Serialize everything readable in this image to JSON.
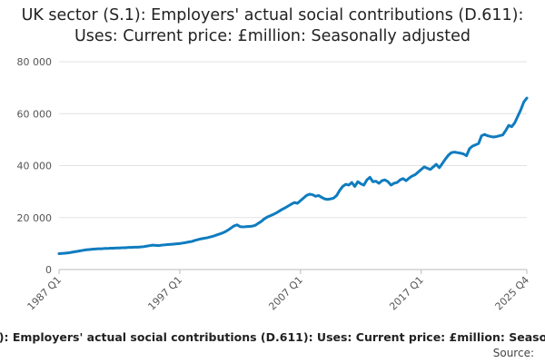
{
  "chart_data": {
    "type": "line",
    "title": "UK sector (S.1): Employers' actual social contributions (D.611): Uses: Current price: £million: Seasonally adjusted",
    "source_label": "Source:",
    "categories": [
      "1987 Q1",
      null,
      null,
      null,
      null,
      null,
      null,
      null,
      null,
      null,
      null,
      null,
      null,
      null,
      null,
      null,
      null,
      null,
      null,
      null,
      null,
      null,
      null,
      null,
      null,
      null,
      null,
      null,
      null,
      null,
      null,
      null,
      null,
      null,
      null,
      null,
      null,
      null,
      null,
      null,
      "1997 Q1",
      null,
      null,
      null,
      null,
      null,
      null,
      null,
      null,
      null,
      null,
      null,
      null,
      null,
      null,
      null,
      null,
      null,
      null,
      null,
      null,
      null,
      null,
      null,
      null,
      null,
      null,
      null,
      null,
      null,
      null,
      null,
      null,
      null,
      null,
      null,
      null,
      null,
      null,
      null,
      "2007 Q1",
      null,
      null,
      null,
      null,
      null,
      null,
      null,
      null,
      null,
      null,
      null,
      null,
      null,
      null,
      null,
      null,
      null,
      null,
      null,
      null,
      null,
      null,
      null,
      null,
      null,
      null,
      null,
      null,
      null,
      null,
      null,
      null,
      null,
      null,
      null,
      null,
      null,
      null,
      null,
      "2017 Q1",
      null,
      null,
      null,
      null,
      null,
      null,
      null,
      null,
      null,
      null,
      null,
      null,
      null,
      null,
      null,
      null,
      null,
      null,
      null,
      null,
      null,
      null,
      null,
      null,
      null,
      null,
      null,
      null,
      null,
      null,
      null,
      null,
      null,
      null,
      "2025 Q4"
    ],
    "series": [
      {
        "color": "#0f7cbf",
        "values": [
          6100,
          6200,
          6300,
          6400,
          6600,
          6800,
          7000,
          7200,
          7400,
          7600,
          7700,
          7800,
          7900,
          8000,
          8000,
          8100,
          8100,
          8200,
          8200,
          8300,
          8300,
          8400,
          8400,
          8500,
          8500,
          8600,
          8600,
          8700,
          8800,
          9000,
          9200,
          9400,
          9300,
          9200,
          9400,
          9500,
          9600,
          9700,
          9800,
          9900,
          10000,
          10200,
          10400,
          10600,
          10800,
          11200,
          11500,
          11800,
          12000,
          12200,
          12500,
          12800,
          13200,
          13600,
          14000,
          14500,
          15200,
          16000,
          16800,
          17200,
          16500,
          16400,
          16500,
          16600,
          16700,
          17000,
          17800,
          18500,
          19500,
          20200,
          20700,
          21200,
          21800,
          22500,
          23200,
          23800,
          24500,
          25200,
          25800,
          25500,
          26500,
          27500,
          28500,
          29000,
          28800,
          28200,
          28500,
          27800,
          27200,
          27000,
          27200,
          27500,
          28500,
          30500,
          32000,
          32800,
          32500,
          33500,
          32000,
          33800,
          33000,
          32500,
          34500,
          35500,
          33800,
          34000,
          33200,
          34200,
          34500,
          33800,
          32500,
          33200,
          33500,
          34500,
          35000,
          34200,
          35200,
          36000,
          36500,
          37500,
          38500,
          39500,
          39000,
          38500,
          39500,
          40500,
          39200,
          40800,
          42500,
          44000,
          45000,
          45200,
          45000,
          44800,
          44500,
          43800,
          46500,
          47500,
          48000,
          48500,
          51500,
          52000,
          51500,
          51200,
          51000,
          51200,
          51500,
          51800,
          53500,
          55500,
          55000,
          56500,
          59000,
          61500,
          64500,
          66000
        ]
      }
    ],
    "ylim": [
      0,
      80000
    ],
    "yticks": [
      0,
      {
        "value": 20000,
        "label": "20 000"
      },
      {
        "value": 40000,
        "label": "40 000"
      },
      {
        "value": 60000,
        "label": "60 000"
      },
      {
        "value": 80000,
        "label": "80 000"
      }
    ],
    "grid": true
  }
}
